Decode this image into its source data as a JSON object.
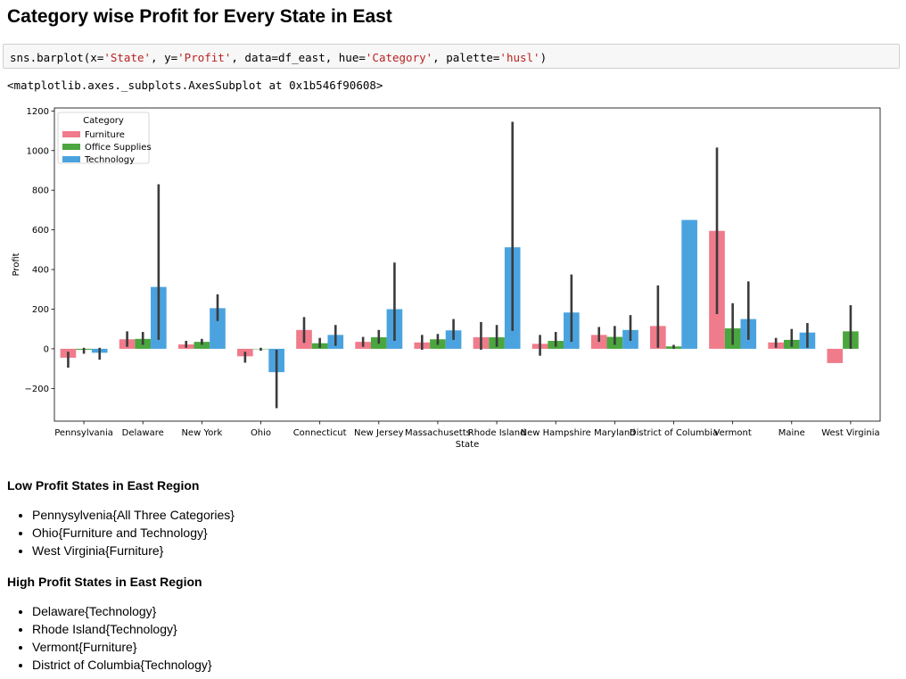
{
  "heading": "Category wise Profit for Every State in East",
  "code": {
    "prefix": "sns.barplot(x=",
    "x_arg": "'State'",
    "sep1": ", y=",
    "y_arg": "'Profit'",
    "sep2": ", data=df_east, hue=",
    "hue_arg": "'Category'",
    "sep3": ", palette=",
    "palette_arg": "'husl'",
    "suffix": ")"
  },
  "output_text": "<matplotlib.axes._subplots.AxesSubplot at 0x1b546f90608>",
  "chart_data": {
    "type": "bar",
    "xlabel": "State",
    "ylabel": "Profit",
    "ylim": [
      -365,
      1215
    ],
    "yticks": [
      -200,
      0,
      200,
      400,
      600,
      800,
      1000,
      1200
    ],
    "ytick_labels": [
      "−200",
      "0",
      "200",
      "400",
      "600",
      "800",
      "1000",
      "1200"
    ],
    "legend_title": "Category",
    "legend_position": "top-left",
    "grid": false,
    "categories": [
      "Pennsylvania",
      "Delaware",
      "New York",
      "Ohio",
      "Connecticut",
      "New Jersey",
      "Massachusetts",
      "Rhode Island",
      "New Hampshire",
      "Maryland",
      "District of Columbia",
      "Vermont",
      "Maine",
      "West Virginia"
    ],
    "series": [
      {
        "name": "Furniture",
        "color": "#f07b8b",
        "values": [
          -45,
          48,
          22,
          -38,
          95,
          35,
          32,
          58,
          25,
          70,
          115,
          595,
          32,
          -72
        ],
        "ci_low": [
          -95,
          10,
          5,
          -70,
          30,
          10,
          -5,
          -5,
          -35,
          35,
          5,
          175,
          5,
          null
        ],
        "ci_high": [
          -15,
          88,
          40,
          -15,
          160,
          60,
          70,
          135,
          70,
          110,
          320,
          1015,
          55,
          null
        ]
      },
      {
        "name": "Office Supplies",
        "color": "#4aa63e",
        "values": [
          -5,
          50,
          35,
          -2,
          28,
          58,
          48,
          58,
          40,
          60,
          12,
          103,
          45,
          88
        ],
        "ci_low": [
          -25,
          20,
          20,
          -10,
          5,
          25,
          20,
          10,
          10,
          20,
          0,
          20,
          10,
          0
        ],
        "ci_high": [
          5,
          85,
          50,
          5,
          55,
          95,
          75,
          120,
          85,
          115,
          20,
          230,
          100,
          220
        ]
      },
      {
        "name": "Technology",
        "color": "#4aa3df",
        "values": [
          -20,
          312,
          205,
          -118,
          70,
          200,
          93,
          512,
          183,
          95,
          650,
          150,
          82,
          null
        ],
        "ci_low": [
          -55,
          45,
          140,
          -300,
          15,
          40,
          45,
          90,
          35,
          40,
          null,
          45,
          5,
          null
        ],
        "ci_high": [
          5,
          830,
          275,
          -5,
          120,
          435,
          150,
          1145,
          375,
          170,
          null,
          340,
          130,
          null
        ]
      }
    ]
  },
  "low_section": {
    "title": "Low Profit States in East Region",
    "items": [
      "Pennysylvenia{All Three Categories}",
      "Ohio{Furniture and Technology}",
      "West Virginia{Furniture}"
    ]
  },
  "high_section": {
    "title": "High Profit States in East Region",
    "items": [
      "Delaware{Technology}",
      "Rhode Island{Technology}",
      "Vermont{Furniture}",
      "District of Columbia{Technology}"
    ]
  }
}
